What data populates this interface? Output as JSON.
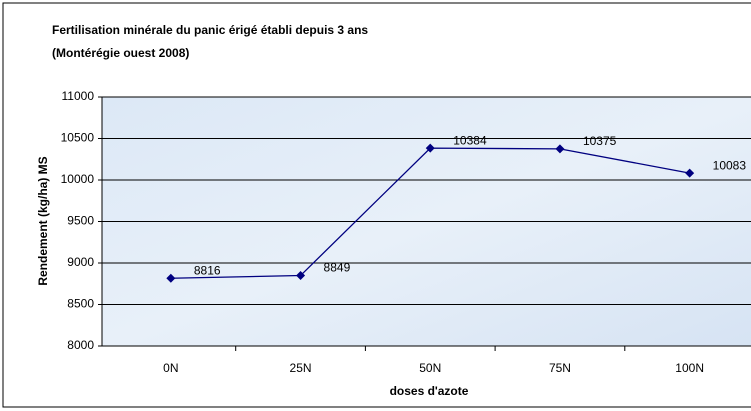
{
  "chart_data": {
    "type": "line",
    "title": "Fertilisation minérale du panic érigé établi depuis 3 ans",
    "subtitle": "(Montérégie ouest 2008)",
    "x_label": "doses d'azote",
    "y_label": "Rendement (kg/ha) MS",
    "categories": [
      "0N",
      "25N",
      "50N",
      "75N",
      "100N"
    ],
    "series": [
      {
        "name": "Rendement",
        "color": "#000080",
        "values": [
          8816,
          8849,
          10384,
          10375,
          10083
        ]
      }
    ],
    "ylim": [
      8000,
      11000
    ],
    "yticks": [
      8000,
      8500,
      9000,
      9500,
      10000,
      10500,
      11000
    ],
    "grid": true
  }
}
